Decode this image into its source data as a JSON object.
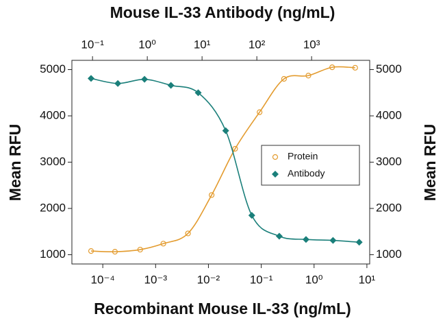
{
  "chart_data": {
    "type": "scatter",
    "title": "Mouse IL-33 Antibody (ng/mL)",
    "xlabel": "Recombinant Mouse IL-33 (ng/mL)",
    "ylabel": "Mean RFU",
    "y2label": "Mean RFU",
    "xscale": "log",
    "xlim": [
      2.6e-05,
      11.3
    ],
    "xticks": [
      {
        "value": 0.0001,
        "label": "10⁻⁴"
      },
      {
        "value": 0.001,
        "label": "10⁻³"
      },
      {
        "value": 0.01,
        "label": "10⁻²"
      },
      {
        "value": 0.1,
        "label": "10⁻¹"
      },
      {
        "value": 1,
        "label": "10⁰"
      },
      {
        "value": 10,
        "label": "10¹"
      }
    ],
    "x2scale": "log",
    "x2lim": [
      0.042,
      11500
    ],
    "x2ticks": [
      {
        "value": 0.1,
        "label": "10⁻¹"
      },
      {
        "value": 1,
        "label": "10⁰"
      },
      {
        "value": 10,
        "label": "10¹"
      },
      {
        "value": 100,
        "label": "10²"
      },
      {
        "value": 1000,
        "label": "10³"
      }
    ],
    "ylim": [
      800,
      5200
    ],
    "yticks": [
      1000,
      2000,
      3000,
      4000,
      5000
    ],
    "y2lim": [
      800,
      5200
    ],
    "y2ticks": [
      1000,
      2000,
      3000,
      4000,
      5000
    ],
    "legend": "right",
    "series": [
      {
        "name": "Protein",
        "color": "#e39b2e",
        "marker": "circle",
        "x": [
          6e-05,
          0.00017,
          0.00051,
          0.0014,
          0.0041,
          0.0115,
          0.032,
          0.093,
          0.27,
          0.78,
          2.2,
          6.0
        ],
        "values": [
          1080,
          1065,
          1110,
          1240,
          1460,
          2290,
          3290,
          4080,
          4800,
          4870,
          5050,
          5040
        ]
      },
      {
        "name": "Antibody",
        "color": "#1a7f7a",
        "marker": "diamond",
        "axis": "x2",
        "x": [
          0.094,
          0.29,
          0.89,
          2.7,
          8.5,
          27,
          81,
          257,
          790,
          2460,
          7400
        ],
        "values": [
          4810,
          4700,
          4790,
          4660,
          4500,
          3680,
          1850,
          1400,
          1330,
          1310,
          1270
        ]
      }
    ]
  }
}
